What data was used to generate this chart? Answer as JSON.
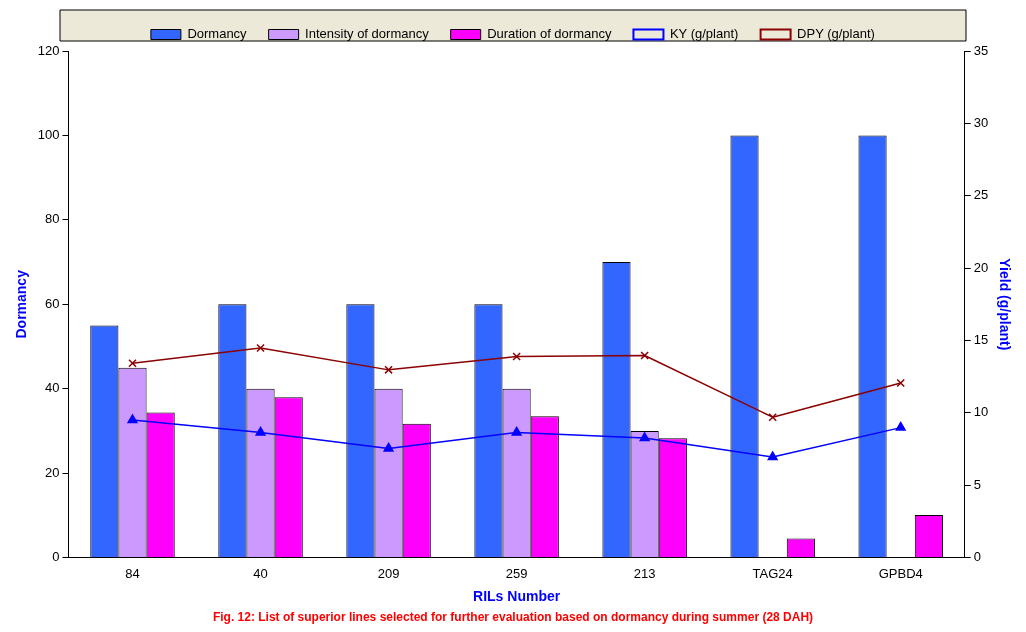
{
  "chart_data": {
    "type": "bar",
    "xlabel": "RILs Number",
    "ylabel": "Dormancy",
    "y2label": "Yield (g/plant)",
    "annotations": [
      "Fig. 12: List of superior lines selected for further evaluation based on dormancy during summer (28 DAH)"
    ],
    "categories": [
      "84",
      "40",
      "209",
      "259",
      "213",
      "TAG24",
      "GPBD4"
    ],
    "series": [
      {
        "name": "Dormancy",
        "color": "#3366ff",
        "values": [
          55,
          60,
          60,
          60,
          70,
          100,
          100
        ]
      },
      {
        "name": "Intensity of dormancy",
        "color": "#cc99ff",
        "values": [
          45,
          40,
          40,
          40,
          30,
          null,
          null
        ]
      },
      {
        "name": "Duration of dormancy",
        "color": "#ff00ff",
        "values": [
          34.4,
          38.0,
          31.7,
          33.5,
          28.3,
          4.5,
          10.1
        ]
      },
      {
        "name": "KY (g/plant)",
        "type": "line",
        "axis": "y2",
        "marker": "triangle",
        "color": "#0000ff",
        "values": [
          9.5,
          8.65,
          7.54,
          8.65,
          8.26,
          6.95,
          8.98
        ]
      },
      {
        "name": "DPY (g/plant)",
        "type": "line",
        "axis": "y2",
        "marker": "cross",
        "color": "#8b0000",
        "values": [
          13.43,
          14.48,
          12.97,
          13.89,
          13.96,
          9.7,
          12.06
        ]
      }
    ],
    "ylim": [
      0,
      120
    ],
    "yticks": [
      0,
      20,
      40,
      60,
      80,
      100,
      120
    ],
    "y2lim": [
      0,
      35
    ],
    "y2ticks": [
      0,
      5,
      10,
      15,
      20,
      25,
      30,
      35
    ],
    "grid": false,
    "legend": "top"
  }
}
